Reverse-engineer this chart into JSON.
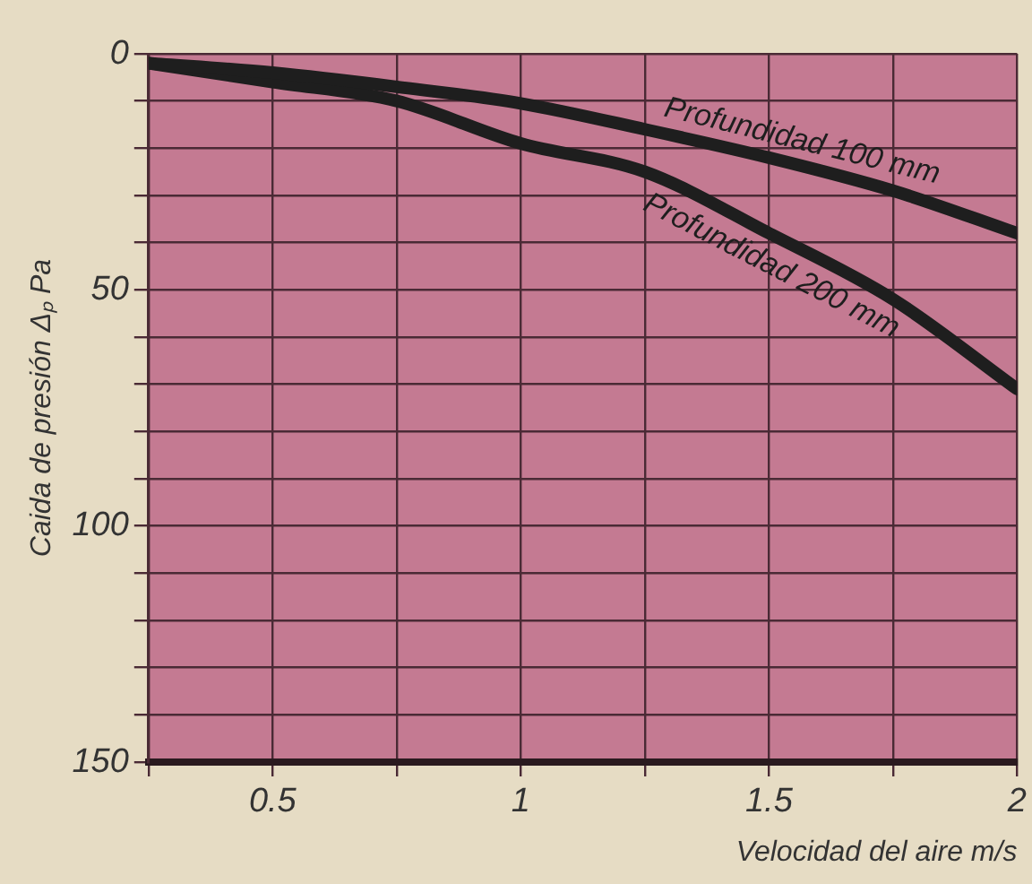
{
  "chart_data": {
    "type": "line",
    "xlabel": "Velocidad del aire m/s",
    "ylabel": "Caida de presión Δₚ Pa",
    "x": [
      0.25,
      0.5,
      0.75,
      1,
      1.25,
      1.5,
      1.75,
      2
    ],
    "series": [
      {
        "name": "Profundidad 100 mm",
        "color": "#1e1e1e",
        "values": [
          2,
          4,
          7,
          10.5,
          16,
          22,
          29,
          38
        ]
      },
      {
        "name": "Profundidad 200 mm",
        "color": "#1e1e1e",
        "values": [
          2,
          6,
          10,
          19,
          25,
          38,
          52,
          71
        ]
      }
    ],
    "xlim": [
      0.25,
      2
    ],
    "xticks": [
      {
        "value": 0.25,
        "label": null
      },
      0.5,
      {
        "value": 0.75,
        "label": null
      },
      1,
      {
        "value": 1.25,
        "label": null
      },
      1.5,
      {
        "value": 1.75,
        "label": null
      },
      2
    ],
    "ylim": [
      150,
      0
    ],
    "yticks": [
      0,
      {
        "value": 10,
        "label": null
      },
      {
        "value": 20,
        "label": null
      },
      {
        "value": 30,
        "label": null
      },
      {
        "value": 40,
        "label": null
      },
      50,
      {
        "value": 60,
        "label": null
      },
      {
        "value": 70,
        "label": null
      },
      {
        "value": 80,
        "label": null
      },
      {
        "value": 90,
        "label": null
      },
      100,
      {
        "value": 110,
        "label": null
      },
      {
        "value": 120,
        "label": null
      },
      {
        "value": 130,
        "label": null
      },
      {
        "value": 140,
        "label": null
      },
      150
    ],
    "grid": true,
    "legend": false,
    "marker": "none",
    "line_style": "solid"
  }
}
